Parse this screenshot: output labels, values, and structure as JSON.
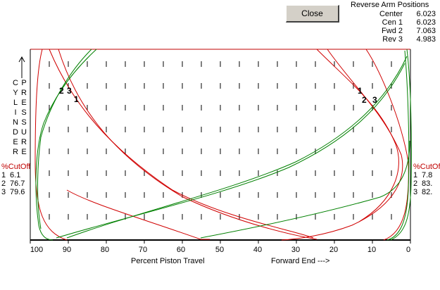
{
  "close_button": {
    "label": "Close"
  },
  "reverse_arm": {
    "title": "Reverse Arm Positions",
    "rows": [
      {
        "label": "Center",
        "value": "6.023"
      },
      {
        "label": "Cen 1",
        "value": "6.023"
      },
      {
        "label": "Fwd 2",
        "value": "7.063"
      },
      {
        "label": "Rev 3",
        "value": "4.983"
      }
    ]
  },
  "y_axis_text": {
    "col1": [
      "C",
      "Y",
      "L",
      "I",
      "N",
      "D",
      "E",
      "R"
    ],
    "col2": [
      "P",
      "R",
      "E",
      "S",
      "S",
      "U",
      "R",
      "E"
    ]
  },
  "cutoff_left": {
    "title": "%CutOff",
    "rows": [
      {
        "idx": "1",
        "value": "6.1"
      },
      {
        "idx": "2",
        "value": "76.7"
      },
      {
        "idx": "3",
        "value": "79.6"
      }
    ]
  },
  "cutoff_right": {
    "title": "%CutOff",
    "rows": [
      {
        "idx": "1",
        "value": "7.8"
      },
      {
        "idx": "2",
        "value": "83."
      },
      {
        "idx": "3",
        "value": "82."
      }
    ]
  },
  "x_axis": {
    "title": "Percent Piston Travel",
    "direction_label": "Forward End --->",
    "ticks": [
      "100",
      "90",
      "80",
      "70",
      "60",
      "50",
      "40",
      "30",
      "20",
      "10",
      "0"
    ]
  },
  "curve_markers": {
    "left": [
      "2",
      "3",
      "1"
    ],
    "right": [
      "1",
      "2",
      "3"
    ]
  },
  "colors": {
    "red": "#d00000",
    "green": "#008000",
    "frame_red": "#c00000"
  }
}
